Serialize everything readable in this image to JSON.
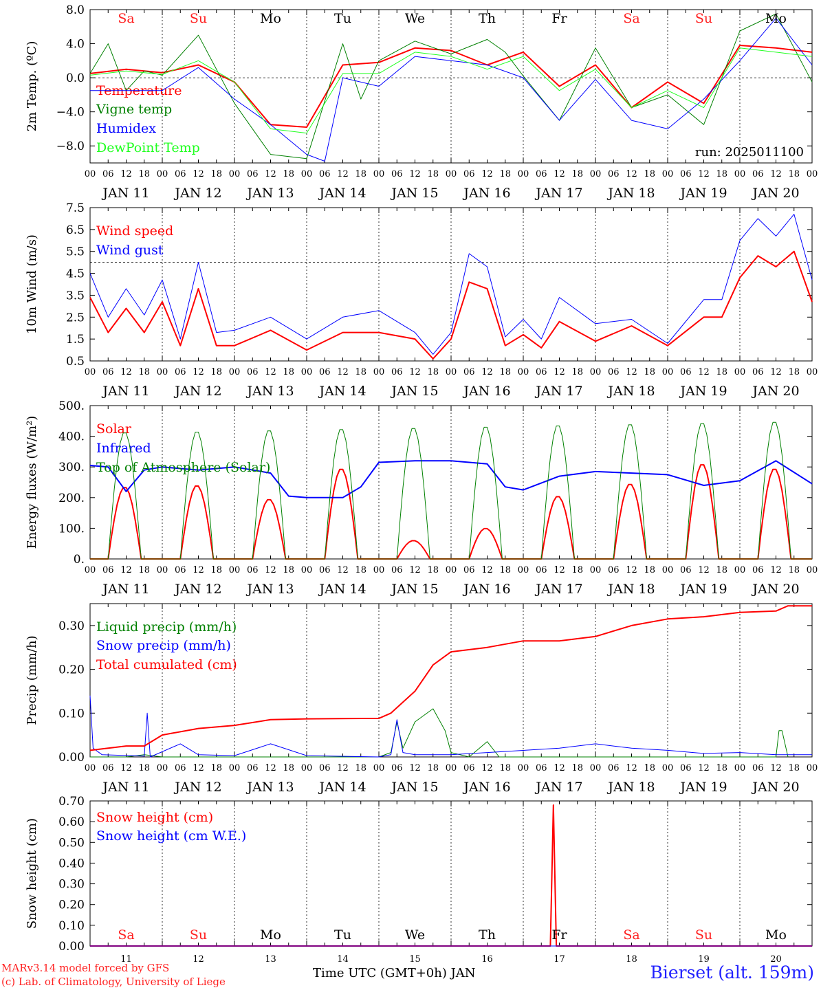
{
  "chart_data": {
    "type": "line",
    "days": [
      "11",
      "12",
      "13",
      "14",
      "15",
      "16",
      "17",
      "18",
      "19",
      "20"
    ],
    "day_labels": [
      "JAN 11",
      "JAN 12",
      "JAN 13",
      "JAN 14",
      "JAN 15",
      "JAN 16",
      "JAN 17",
      "JAN 18",
      "JAN 19",
      "JAN 20"
    ],
    "weekdays": [
      "Sa",
      "Su",
      "Mo",
      "Tu",
      "We",
      "Th",
      "Fr",
      "Sa",
      "Su",
      "Mo"
    ],
    "weekday_colors": [
      "#ff2020",
      "#ff2020",
      "#000000",
      "#000000",
      "#000000",
      "#000000",
      "#000000",
      "#ff2020",
      "#ff2020",
      "#000000"
    ],
    "hour_ticks": [
      "00",
      "06",
      "12",
      "18"
    ],
    "x_label": "Time UTC (GMT+0h) JAN",
    "panels": [
      {
        "ylabel": "2m Temp. (ºC)",
        "ylim": [
          -10,
          8
        ],
        "yticks": [
          8,
          4,
          0,
          -4,
          -8
        ],
        "ytick_labels": [
          "8.0",
          "4.0",
          "0.0",
          "−4.0",
          "−8.0"
        ],
        "ref_line": 0,
        "annotation": "run: 2025011100",
        "series": [
          {
            "name": "Temperature",
            "color": "#ff0000",
            "width": 2,
            "x": [
              0,
              12,
              24,
              36,
              48,
              60,
              72,
              84,
              96,
              108,
              120,
              132,
              144,
              156,
              168,
              180,
              192,
              204,
              216,
              228,
              240
            ],
            "values": [
              0.5,
              1.0,
              0.6,
              1.5,
              -0.5,
              -5.5,
              -5.8,
              1.5,
              1.8,
              3.5,
              3.2,
              1.5,
              3.0,
              -1.0,
              1.5,
              -3.5,
              -0.5,
              -3.0,
              3.8,
              3.5,
              3.0
            ]
          },
          {
            "name": "Vigne temp",
            "color": "#008000",
            "width": 1,
            "x": [
              0,
              6,
              12,
              18,
              24,
              36,
              48,
              60,
              72,
              84,
              90,
              96,
              108,
              120,
              132,
              138,
              144,
              156,
              168,
              180,
              192,
              204,
              216,
              228,
              240
            ],
            "values": [
              0.5,
              4.0,
              -1.5,
              0.8,
              0.3,
              5.0,
              -3.0,
              -9.0,
              -9.5,
              4.0,
              -2.5,
              2.0,
              4.3,
              2.8,
              4.5,
              3.0,
              0.2,
              -5.0,
              3.5,
              -3.5,
              -2.0,
              -5.5,
              5.5,
              7.5,
              -0.5
            ]
          },
          {
            "name": "Humidex",
            "color": "#0000ff",
            "width": 1,
            "x": [
              0,
              12,
              24,
              36,
              48,
              60,
              72,
              78,
              84,
              96,
              108,
              120,
              132,
              144,
              156,
              168,
              180,
              192,
              204,
              216,
              228,
              240
            ],
            "values": [
              -1.5,
              -1.5,
              -1.5,
              1.2,
              -2.5,
              -5.5,
              -9.0,
              -9.8,
              0.0,
              -1.0,
              2.5,
              2.0,
              1.5,
              0.0,
              -5.0,
              -0.2,
              -5.0,
              -6.0,
              -2.5,
              2.0,
              7.0,
              1.5
            ]
          },
          {
            "name": "DewPoint Temp",
            "color": "#20ff20",
            "width": 1,
            "x": [
              0,
              12,
              24,
              36,
              48,
              60,
              72,
              84,
              96,
              108,
              120,
              132,
              144,
              156,
              168,
              180,
              192,
              204,
              216,
              228,
              240
            ],
            "values": [
              0.3,
              0.8,
              0.4,
              2.0,
              -0.5,
              -6.0,
              -6.5,
              0.5,
              0.5,
              3.0,
              2.5,
              1.0,
              2.5,
              -1.5,
              1.0,
              -3.5,
              -1.5,
              -3.5,
              3.5,
              3.0,
              2.5
            ]
          }
        ]
      },
      {
        "ylabel": "10m Wind (m/s)",
        "ylim": [
          0.5,
          7.5
        ],
        "yticks": [
          7.5,
          6.5,
          5.5,
          4.5,
          3.5,
          2.5,
          1.5,
          0.5
        ],
        "ytick_labels": [
          "7.5",
          "6.5",
          "5.5",
          "4.5",
          "3.5",
          "2.5",
          "1.5",
          "0.5"
        ],
        "ref_line": 5.0,
        "annotation": "",
        "series": [
          {
            "name": "Wind speed",
            "color": "#ff0000",
            "width": 2,
            "x": [
              0,
              6,
              12,
              18,
              24,
              30,
              36,
              42,
              48,
              60,
              72,
              84,
              96,
              108,
              114,
              120,
              126,
              132,
              138,
              144,
              150,
              156,
              168,
              180,
              192,
              204,
              210,
              216,
              222,
              228,
              234,
              240
            ],
            "values": [
              3.4,
              1.8,
              2.9,
              1.8,
              3.2,
              1.2,
              3.8,
              1.2,
              1.2,
              1.9,
              1.0,
              1.8,
              1.8,
              1.5,
              0.6,
              1.5,
              4.1,
              3.8,
              1.2,
              1.7,
              1.1,
              2.3,
              1.4,
              2.1,
              1.2,
              2.5,
              2.5,
              4.3,
              5.3,
              4.8,
              5.5,
              3.2
            ]
          },
          {
            "name": "Wind gust",
            "color": "#0000ff",
            "width": 1,
            "x": [
              0,
              6,
              12,
              18,
              24,
              30,
              36,
              42,
              48,
              60,
              72,
              84,
              96,
              108,
              114,
              120,
              126,
              132,
              138,
              144,
              150,
              156,
              168,
              180,
              192,
              204,
              210,
              216,
              222,
              228,
              234,
              240
            ],
            "values": [
              4.5,
              2.5,
              3.8,
              2.6,
              4.2,
              1.5,
              5.0,
              1.8,
              1.9,
              2.5,
              1.5,
              2.5,
              2.8,
              1.8,
              0.8,
              1.8,
              5.4,
              4.8,
              1.6,
              2.4,
              1.5,
              3.4,
              2.2,
              2.4,
              1.3,
              3.3,
              3.3,
              6.0,
              7.0,
              6.2,
              7.2,
              4.2
            ]
          }
        ]
      },
      {
        "ylabel": "Energy fluxes (W/m²)",
        "ylim": [
          0,
          500
        ],
        "yticks": [
          500,
          400,
          300,
          200,
          100,
          0
        ],
        "ytick_labels": [
          "500.",
          "400.",
          "300.",
          "200.",
          "100.",
          "0."
        ],
        "ref_line": null,
        "annotation": "",
        "series": [
          {
            "name": "Solar",
            "color": "#ff0000",
            "width": 2,
            "diurnal_peaks": [
              235,
              240,
              195,
              295,
              60,
              100,
              205,
              245,
              310,
              295
            ]
          },
          {
            "name": "Infrared",
            "color": "#0000ff",
            "width": 2,
            "x": [
              0,
              6,
              12,
              18,
              24,
              36,
              48,
              60,
              66,
              72,
              84,
              90,
              96,
              108,
              120,
              126,
              132,
              138,
              144,
              156,
              168,
              180,
              192,
              204,
              216,
              228,
              240
            ],
            "values": [
              305,
              300,
              220,
              290,
              300,
              290,
              300,
              280,
              205,
              200,
              200,
              235,
              315,
              320,
              320,
              315,
              310,
              235,
              225,
              270,
              285,
              280,
              275,
              240,
              255,
              320,
              245
            ]
          },
          {
            "name": "Top of Atmosphere (Solar)",
            "color": "#008000",
            "width": 1,
            "diurnal_peaks": [
              415,
              418,
              422,
              426,
              430,
              434,
              438,
              442,
              446,
              450
            ]
          }
        ]
      },
      {
        "ylabel": "Precip (mm/h)",
        "ylim": [
          0,
          0.35
        ],
        "yticks": [
          0.3,
          0.2,
          0.1,
          0.0
        ],
        "ytick_labels": [
          "0.30",
          "0.20",
          "0.10",
          "0.00"
        ],
        "ref_line": null,
        "annotation": "",
        "series": [
          {
            "name": "Liquid precip (mm/h)",
            "color": "#008000",
            "width": 1,
            "x": [
              0,
              6,
              12,
              18,
              24,
              96,
              100,
              102,
              104,
              108,
              114,
              118,
              120,
              126,
              132,
              136,
              144,
              228,
              229,
              230,
              232
            ],
            "values": [
              0,
              0,
              0,
              0.005,
              0,
              0,
              0.01,
              0.08,
              0.02,
              0.08,
              0.11,
              0.06,
              0.01,
              0,
              0.035,
              0,
              0,
              0,
              0.06,
              0.06,
              0
            ]
          },
          {
            "name": "Snow precip (mm/h)",
            "color": "#0000ff",
            "width": 1,
            "x": [
              0,
              1,
              4,
              18,
              19,
              20,
              30,
              36,
              48,
              60,
              72,
              96,
              100,
              102,
              104,
              108,
              120,
              156,
              168,
              180,
              192,
              204,
              216,
              228,
              240
            ],
            "values": [
              0.14,
              0.02,
              0.005,
              0.002,
              0.1,
              0.0,
              0.03,
              0.005,
              0.003,
              0.03,
              0.003,
              0.0,
              0.005,
              0.085,
              0.01,
              0.005,
              0.005,
              0.02,
              0.03,
              0.02,
              0.015,
              0.008,
              0.01,
              0.005,
              0.005
            ]
          },
          {
            "name": "Total cumulated (cm)",
            "color": "#ff0000",
            "width": 2,
            "x": [
              0,
              12,
              18,
              24,
              36,
              48,
              60,
              72,
              96,
              100,
              108,
              114,
              120,
              132,
              144,
              156,
              168,
              180,
              192,
              204,
              216,
              228,
              232,
              240
            ],
            "values": [
              0.015,
              0.025,
              0.025,
              0.05,
              0.065,
              0.072,
              0.085,
              0.087,
              0.088,
              0.1,
              0.15,
              0.21,
              0.24,
              0.25,
              0.265,
              0.265,
              0.275,
              0.3,
              0.315,
              0.32,
              0.33,
              0.333,
              0.345,
              0.345
            ]
          }
        ]
      },
      {
        "ylabel": "Snow height (cm)",
        "ylim": [
          0,
          0.7
        ],
        "yticks": [
          0.7,
          0.6,
          0.5,
          0.4,
          0.3,
          0.2,
          0.1,
          0.0
        ],
        "ytick_labels": [
          "0.70",
          "0.60",
          "0.50",
          "0.40",
          "0.30",
          "0.20",
          "0.10",
          "0.00"
        ],
        "ref_line": null,
        "annotation": "",
        "series": [
          {
            "name": "Snow height (cm)",
            "color": "#ff0000",
            "width": 2,
            "x": [
              0,
              153,
              154,
              155,
              240
            ],
            "values": [
              0,
              0,
              0.68,
              0,
              0
            ]
          },
          {
            "name": "Snow height (cm W.E.)",
            "color": "#0000ff",
            "width": 1,
            "x": [
              0,
              240
            ],
            "values": [
              0,
              0
            ]
          }
        ]
      }
    ]
  },
  "footer": {
    "model_line": "MARv3.14 model forced by GFS",
    "lab_line": "(c) Lab. of Climatology, University of Liege",
    "station": "Bierset (alt. 159m)"
  }
}
